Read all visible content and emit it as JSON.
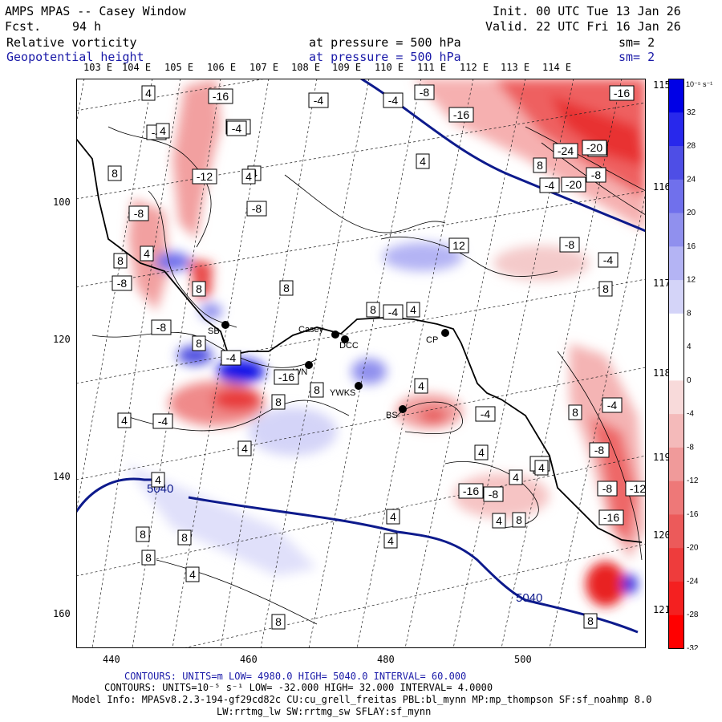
{
  "header": {
    "title": "AMPS MPAS -- Casey Window",
    "forecast_label": "Fcst.",
    "forecast_hours": "94 h",
    "init": "Init. 00 UTC Tue 13 Jan 26",
    "valid": "Valid. 22 UTC Fri 16 Jan 26",
    "field1_name": "Relative vorticity",
    "field1_level": "at pressure =  500 hPa",
    "field1_sm": "sm= 2",
    "field2_name": "Geopotential height",
    "field2_level": "at pressure =  500 hPa",
    "field2_sm": "sm= 2"
  },
  "top_lon_labels": [
    "103 E",
    "104 E",
    "105 E",
    "106 E",
    "107 E",
    "108 E",
    "109 E",
    "110 E",
    "111 E",
    "112 E",
    "113 E",
    "114 E"
  ],
  "right_lon_labels": [
    "115 E",
    "116 E",
    "117 E",
    "118 E",
    "119 E",
    "120 E",
    "121 E"
  ],
  "x_ticks": [
    "440",
    "460",
    "480",
    "500"
  ],
  "y_ticks": [
    "100",
    "120",
    "140",
    "160"
  ],
  "colorbar": {
    "unit": "10⁻⁵ s⁻¹",
    "labels": [
      "32",
      "28",
      "24",
      "20",
      "16",
      "12",
      "8",
      "4",
      "0",
      "-4",
      "-8",
      "-12",
      "-16",
      "-20",
      "-24",
      "-28",
      "-32"
    ],
    "colors": [
      "#0000e6",
      "#2828ec",
      "#4e4ee6",
      "#7070ec",
      "#9090ee",
      "#b4b4f4",
      "#d4d4f8",
      "#ffffff",
      "#ffffff",
      "#f8dada",
      "#f4baba",
      "#f09a9a",
      "#ee7878",
      "#ec5a5a",
      "#ee3c3c",
      "#f42020",
      "#ff0000"
    ]
  },
  "stations": [
    {
      "label": "SB"
    },
    {
      "label": "Casey"
    },
    {
      "label": "DCC"
    },
    {
      "label": "CP"
    },
    {
      "label": "WN"
    },
    {
      "label": "YWKS"
    },
    {
      "label": "BS"
    }
  ],
  "contour_labels": [
    "4",
    "-16",
    "-4",
    "-4",
    "-12",
    "-8",
    "-16",
    "-8",
    "-4",
    "4",
    "-4",
    "8",
    "-12",
    "4",
    "-16",
    "8",
    "-20",
    "-24",
    "-8",
    "4",
    "-4",
    "-20",
    "-8",
    "4",
    "-8",
    "4",
    "12",
    "-8",
    "8",
    "-4",
    "-8",
    "8",
    "8",
    "-4",
    "8",
    "4",
    "-8",
    "4",
    "8",
    "8",
    "-4",
    "-16",
    "8",
    "8",
    "4",
    "-4",
    "8",
    "-4",
    "-8",
    "-4",
    "4",
    "8",
    "-16",
    "-4",
    "4",
    "-12",
    "4",
    "-8",
    "8",
    "-16",
    "-8",
    "4",
    "8",
    "4",
    "8",
    "4",
    "8",
    "4",
    "4",
    "8",
    "4",
    "8"
  ],
  "height_labels": [
    "5040",
    "5040"
  ],
  "footer": {
    "line1": "CONTOURS: UNITS=m  LOW=  4980.0      HIGH= 5040.0     INTERVAL=   60.000",
    "line2": "CONTOURS: UNITS=10⁻⁵ s⁻¹  LOW= -32.000      HIGH=  32.000      INTERVAL=   4.0000",
    "line3": "Model Info: MPASv8.2.3-194-gf29cd82c CU:cu_grell_freitas PBL:bl_mynn MP:mp_thompson SF:sf_noahmp 8.0",
    "line4": "LW:rrtmg_lw SW:rrtmg_sw SFLAY:sf_mynn"
  }
}
